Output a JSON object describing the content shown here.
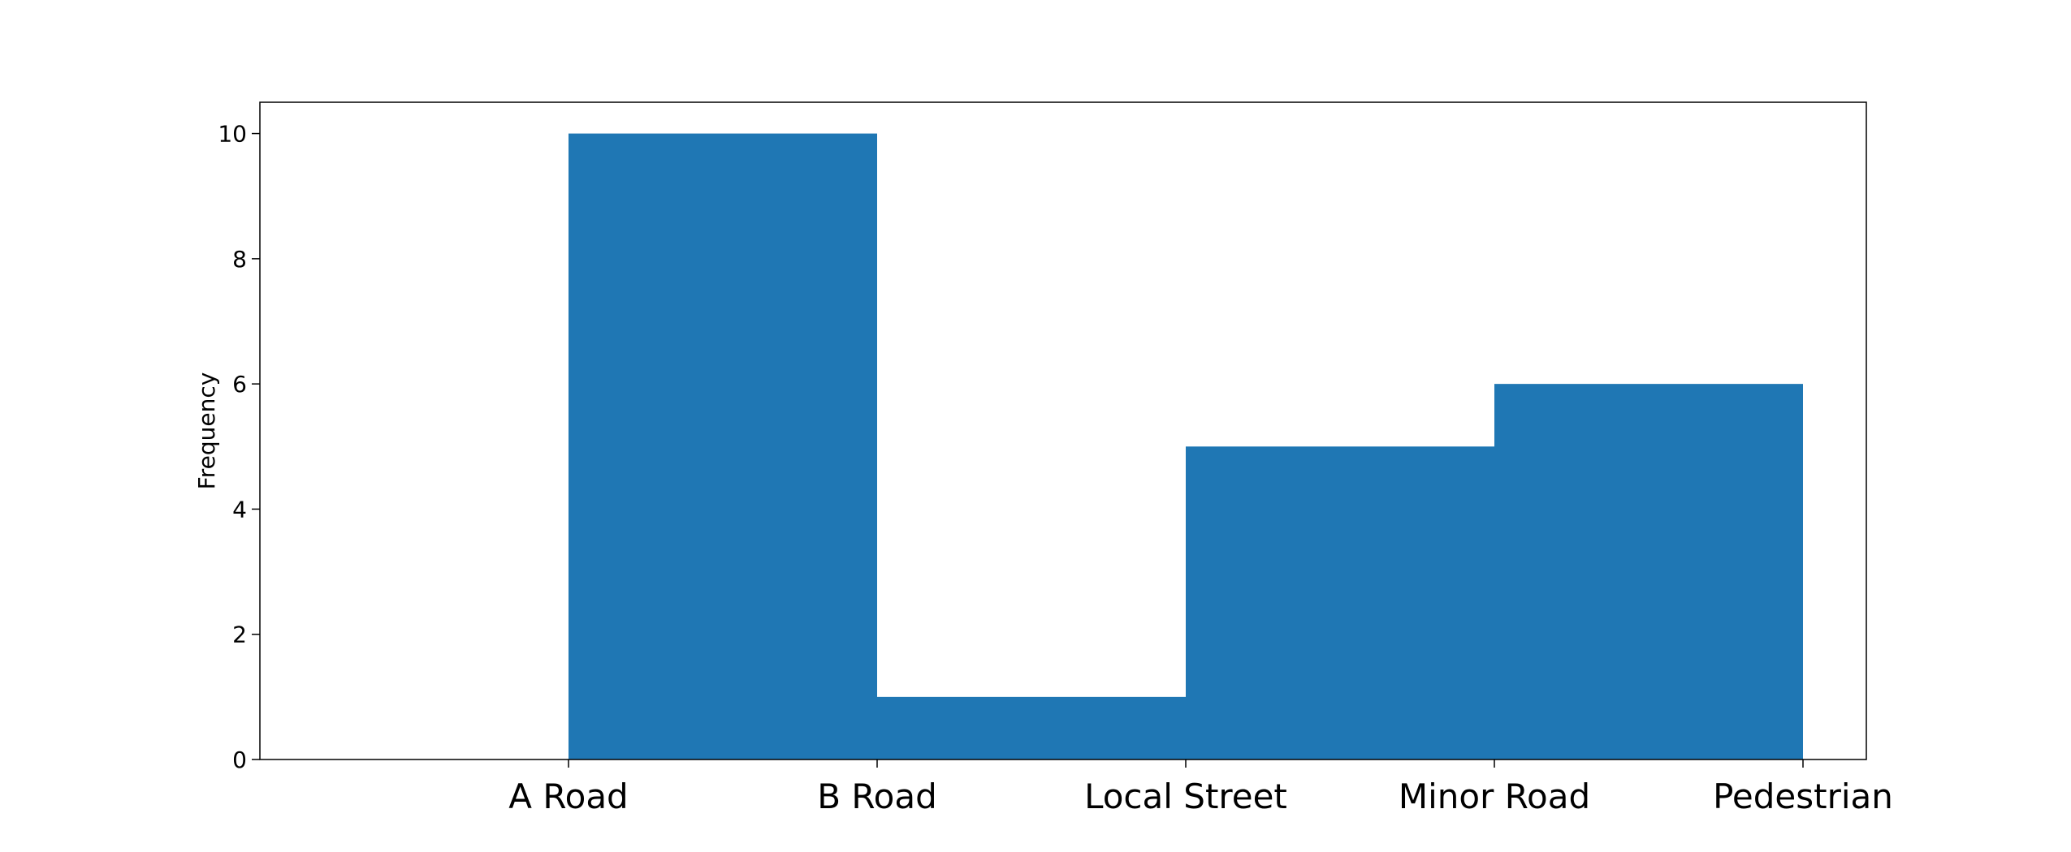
{
  "chart_data": {
    "type": "bar",
    "title": "",
    "xlabel": "",
    "ylabel": "Frequency",
    "bins": [
      {
        "from": "A Road",
        "to": "B Road",
        "value": 10
      },
      {
        "from": "B Road",
        "to": "Local Street",
        "value": 1
      },
      {
        "from": "Local Street",
        "to": "Minor Road",
        "value": 5
      },
      {
        "from": "Minor Road",
        "to": "Pedestrian",
        "value": 6
      }
    ],
    "x_tick_labels": [
      "A Road",
      "B Road",
      "Local Street",
      "Minor Road",
      "Pedestrian"
    ],
    "y_ticks": [
      0,
      2,
      4,
      6,
      8,
      10
    ],
    "ylim": [
      0,
      10.5
    ],
    "grid": false,
    "legend": "none",
    "bar_color": "#1f77b4"
  }
}
